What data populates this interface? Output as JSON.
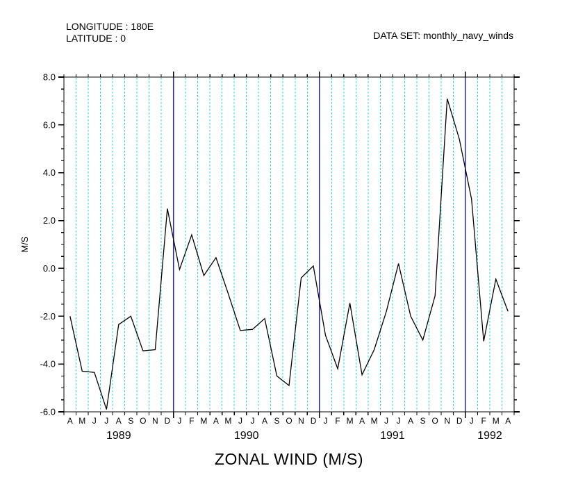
{
  "header": {
    "longitude_label": "LONGITUDE : 180E",
    "latitude_label": "LATITUDE : 0",
    "dataset_label": "DATA SET: monthly_navy_winds"
  },
  "chart_data": {
    "type": "line",
    "title": "ZONAL WIND (M/S)",
    "ylabel": "M/S",
    "xlabel": "",
    "ylim": [
      -6,
      8
    ],
    "y_major_step": 2,
    "y_minor_step": 0.5,
    "grid": "vertical-monthly-dashed",
    "legend": "none",
    "time_range": "Apr 1989 - Apr 1992",
    "month_letters": [
      "A",
      "M",
      "J",
      "J",
      "A",
      "S",
      "O",
      "N",
      "D",
      "J",
      "F",
      "M",
      "A",
      "M",
      "J",
      "J",
      "A",
      "S",
      "O",
      "N",
      "D",
      "J",
      "F",
      "M",
      "A",
      "M",
      "J",
      "J",
      "A",
      "S",
      "O",
      "N",
      "D",
      "J",
      "F",
      "M",
      "A"
    ],
    "years": [
      {
        "label": "1989",
        "from": 0,
        "to": 9
      },
      {
        "label": "1990",
        "from": 9,
        "to": 21
      },
      {
        "label": "1991",
        "from": 21,
        "to": 33
      },
      {
        "label": "1992",
        "from": 33,
        "to": 37
      }
    ],
    "series": [
      {
        "name": "zonal wind (m/s)",
        "values": [
          -2.0,
          -4.3,
          -4.35,
          -5.9,
          -2.35,
          -2.0,
          -3.45,
          -3.4,
          2.5,
          -0.05,
          1.4,
          -0.3,
          0.45,
          -1.05,
          -2.6,
          -2.55,
          -2.1,
          -4.5,
          -4.9,
          -0.4,
          0.1,
          -2.8,
          -4.2,
          -1.45,
          -4.45,
          -3.4,
          -1.8,
          0.2,
          -2.0,
          -3.0,
          -1.15,
          7.1,
          5.4,
          2.9,
          -3.05,
          -0.45,
          -1.8
        ]
      }
    ],
    "colors": {
      "line": "#000000",
      "month_grid": "#00E0E0",
      "year_line": "#2222CC",
      "frame": "#000000"
    }
  }
}
